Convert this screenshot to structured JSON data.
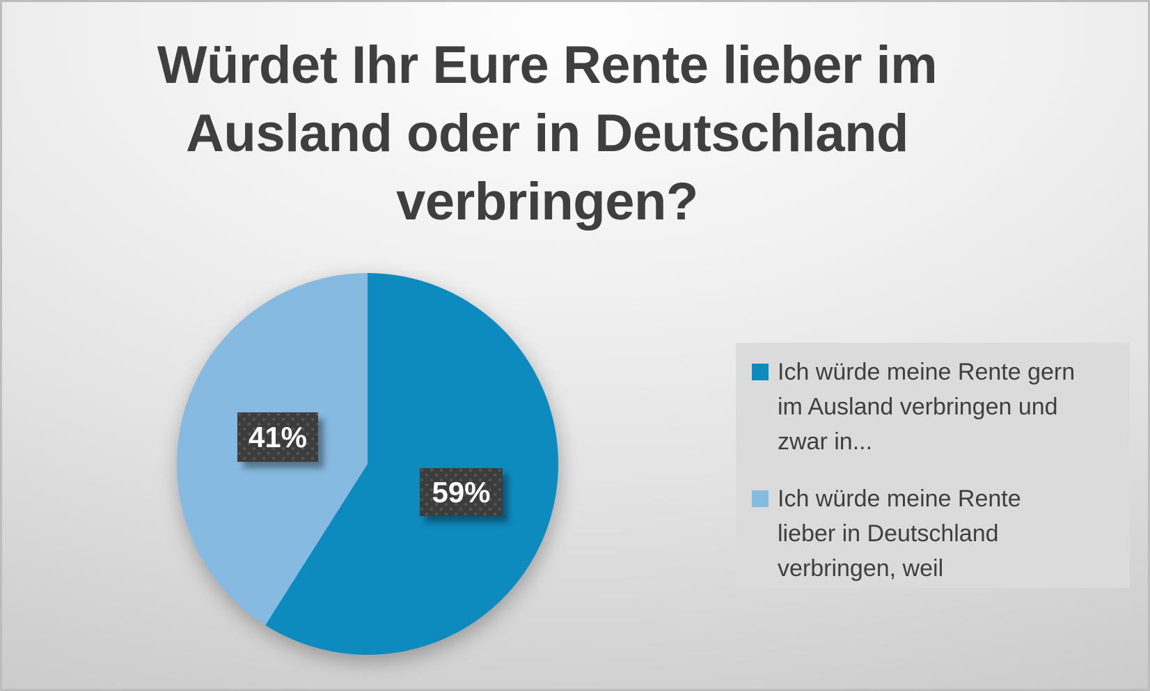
{
  "title": {
    "text": "Würdet Ihr Eure Rente lieber im Ausland oder in Deutschland verbringen?",
    "lines": [
      "Würdet Ihr Eure Rente lieber im",
      "Ausland oder in Deutschland",
      "verbringen?"
    ]
  },
  "chart_data": {
    "type": "pie",
    "title": "Würdet Ihr Eure Rente lieber im Ausland oder in Deutschland verbringen?",
    "start_angle_deg": 0,
    "direction": "clockwise",
    "legend_position": "right",
    "slices": [
      {
        "label": "Ich würde meine Rente gern im Ausland verbringen und zwar in...",
        "value": 59,
        "percent_label": "59%",
        "color": "#0e8bbe"
      },
      {
        "label": "Ich würde meine Rente lieber in Deutschland verbringen, weil",
        "value": 41,
        "percent_label": "41%",
        "color": "#87bae0"
      }
    ],
    "data_label_style": {
      "background": "#3c3c3c",
      "dot_color": "#545454",
      "text_color": "#ffffff"
    }
  },
  "legend": {
    "items": [
      {
        "color": "#0e8bbe",
        "lines": [
          "Ich würde meine Rente gern",
          "im Ausland verbringen und",
          "zwar in..."
        ]
      },
      {
        "color": "#87bae0",
        "lines": [
          "Ich würde meine Rente",
          "lieber in Deutschland",
          "verbringen, weil"
        ]
      }
    ]
  },
  "colors": {
    "title_text": "#3f3f3f",
    "legend_panel_bg": "#dbdbdb",
    "background_edge": "#c3c3c3",
    "background_center": "#fdfdfd"
  }
}
